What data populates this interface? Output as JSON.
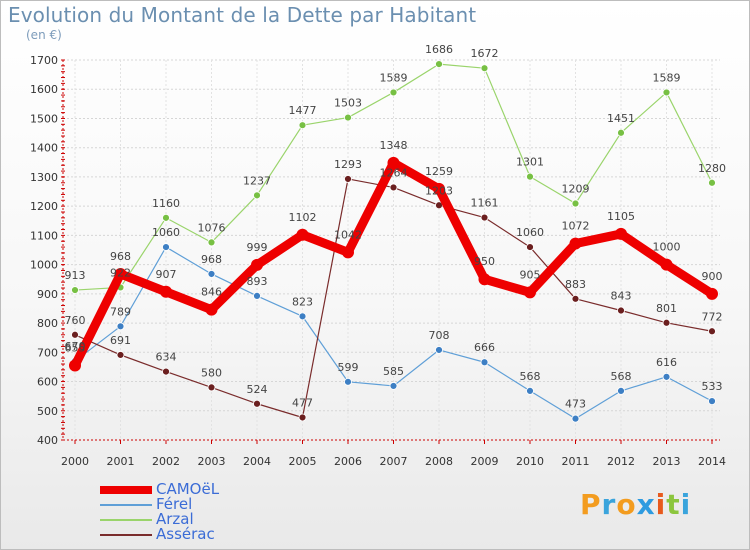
{
  "title": "Evolution du Montant de la Dette par Habitant",
  "unit": "(en €)",
  "logo": {
    "letters": [
      "P",
      "r",
      "o",
      "x",
      "i",
      "t",
      "i"
    ],
    "colors": [
      "#f39c1f",
      "#3aa4dc",
      "#f39c1f",
      "#2e9be0",
      "#e85a1d",
      "#8cc63e",
      "#3aa4dc"
    ]
  },
  "chart_data": {
    "type": "line",
    "x": [
      2000,
      2001,
      2002,
      2003,
      2004,
      2005,
      2006,
      2007,
      2008,
      2009,
      2010,
      2011,
      2012,
      2013,
      2014
    ],
    "ylim": [
      400,
      1700
    ],
    "yticks": [
      400,
      500,
      600,
      700,
      800,
      900,
      1000,
      1100,
      1200,
      1300,
      1400,
      1500,
      1600,
      1700
    ],
    "grid": true,
    "legend_position": "bottom-left",
    "series": [
      {
        "name": "CAMOëL",
        "color": "#ee0000",
        "point_color": "#ee0000",
        "width": 9,
        "point_r": 6,
        "values": [
          655,
          968,
          907,
          846,
          999,
          1102,
          1042,
          1348,
          1259,
          950,
          905,
          1072,
          1105,
          1000,
          900
        ],
        "labels": [
          "655",
          "968",
          "907",
          "846",
          "999",
          "1102",
          "1042",
          "1348",
          "1259",
          "950",
          "905",
          "1072",
          "1105",
          "1000",
          "900"
        ]
      },
      {
        "name": "Férel",
        "color": "#5f9fd7",
        "point_color": "#3d7fc4",
        "width": 1.2,
        "point_r": 3.5,
        "values": [
          670,
          789,
          1060,
          968,
          893,
          823,
          599,
          585,
          708,
          666,
          568,
          473,
          568,
          616,
          533
        ],
        "labels": [
          "670",
          "789",
          "1060",
          "968",
          "893",
          "823",
          "599",
          "585",
          "708",
          "666",
          "568",
          "473",
          "568",
          "616",
          "533"
        ]
      },
      {
        "name": "Arzal",
        "color": "#9ad46b",
        "point_color": "#77c043",
        "width": 1.2,
        "point_r": 3.5,
        "values": [
          913,
          922,
          1160,
          1076,
          1237,
          1477,
          1503,
          1589,
          1686,
          1672,
          1301,
          1209,
          1451,
          1589,
          1280
        ],
        "labels": [
          "913",
          "922",
          "1160",
          "1076",
          "1237",
          "1477",
          "1503",
          "1589",
          "1686",
          "1672",
          "1301",
          "1209",
          "1451",
          "1589",
          "1280"
        ]
      },
      {
        "name": "Assérac",
        "color": "#7a2c2c",
        "point_color": "#6b1f1f",
        "width": 1.2,
        "point_r": 3.5,
        "values": [
          760,
          691,
          634,
          580,
          524,
          477,
          1293,
          1264,
          1203,
          1161,
          1060,
          883,
          843,
          801,
          772
        ],
        "labels": [
          "760",
          "691",
          "634",
          "580",
          "524",
          "477",
          "1293",
          "1264",
          "1203",
          "1161",
          "1060",
          "883",
          "843",
          "801",
          "772"
        ]
      }
    ]
  }
}
